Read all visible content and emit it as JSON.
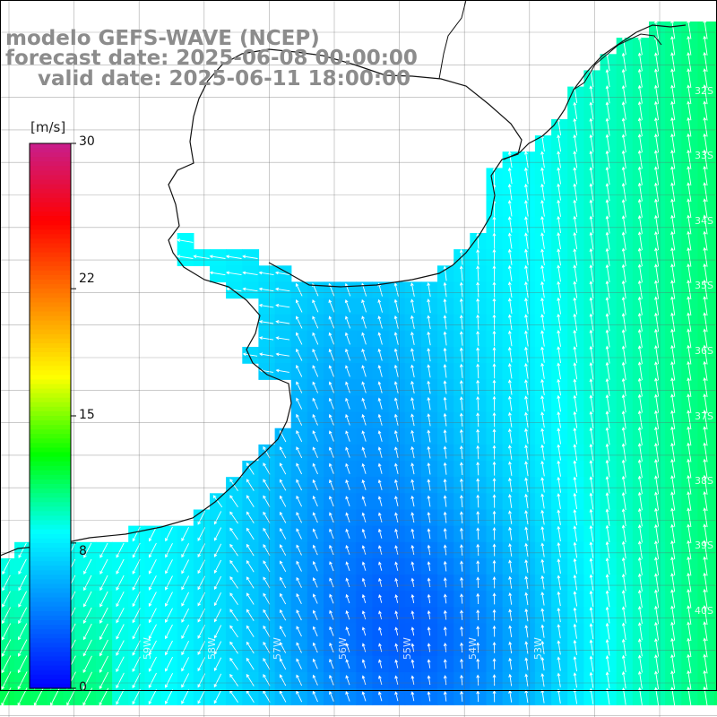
{
  "title": {
    "model": "modelo GEFS-WAVE (NCEP)",
    "forecast": "forecast date: 2025-06-08 00:00:00",
    "valid": "valid date: 2025-06-11 18:00:00"
  },
  "colorbar": {
    "unit": "[m/s]",
    "ticks": [
      "30",
      "22",
      "15",
      "8",
      "0"
    ],
    "tick_values": [
      30,
      22,
      15,
      8,
      0
    ],
    "range": [
      0,
      30
    ],
    "colors": [
      "#0000ff",
      "#0080ff",
      "#00ffff",
      "#00ff00",
      "#ffff00",
      "#ff8000",
      "#ff0000",
      "#c81e8c"
    ]
  },
  "lat_labels": [
    "32S",
    "33S",
    "34S",
    "35S",
    "36S",
    "37S",
    "38S",
    "39S",
    "40S"
  ],
  "lon_labels": [
    "59W",
    "58W",
    "57W",
    "56W",
    "55W",
    "54W",
    "53W"
  ],
  "wind_field": {
    "description_units": "m/s",
    "speed_range_observed": [
      1,
      11
    ],
    "direction": "mostly from the south/south-west (arrows pointing north-east to north-west)"
  }
}
